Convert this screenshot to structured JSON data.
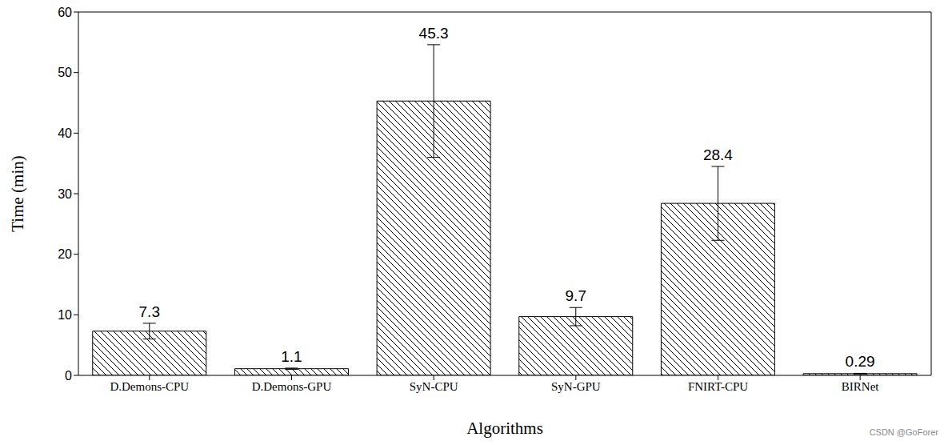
{
  "chart_data": {
    "type": "bar",
    "x_label": "Algorithms",
    "y_label": "Time (min)",
    "categories": [
      "D.Demons-CPU",
      "D.Demons-GPU",
      "SyN-CPU",
      "SyN-GPU",
      "FNIRT-CPU",
      "BIRNet"
    ],
    "values": [
      7.3,
      1.1,
      45.3,
      9.7,
      28.4,
      0.29
    ],
    "errors": [
      1.3,
      0.1,
      9.3,
      1.5,
      6.1,
      0.05
    ],
    "color": "#000000",
    "ylim": [
      0,
      60
    ],
    "yticks": [
      0,
      10,
      20,
      30,
      40,
      50,
      60
    ],
    "grid": false,
    "data_labels": true,
    "annotations": [
      "CSDN @GoForer"
    ]
  }
}
